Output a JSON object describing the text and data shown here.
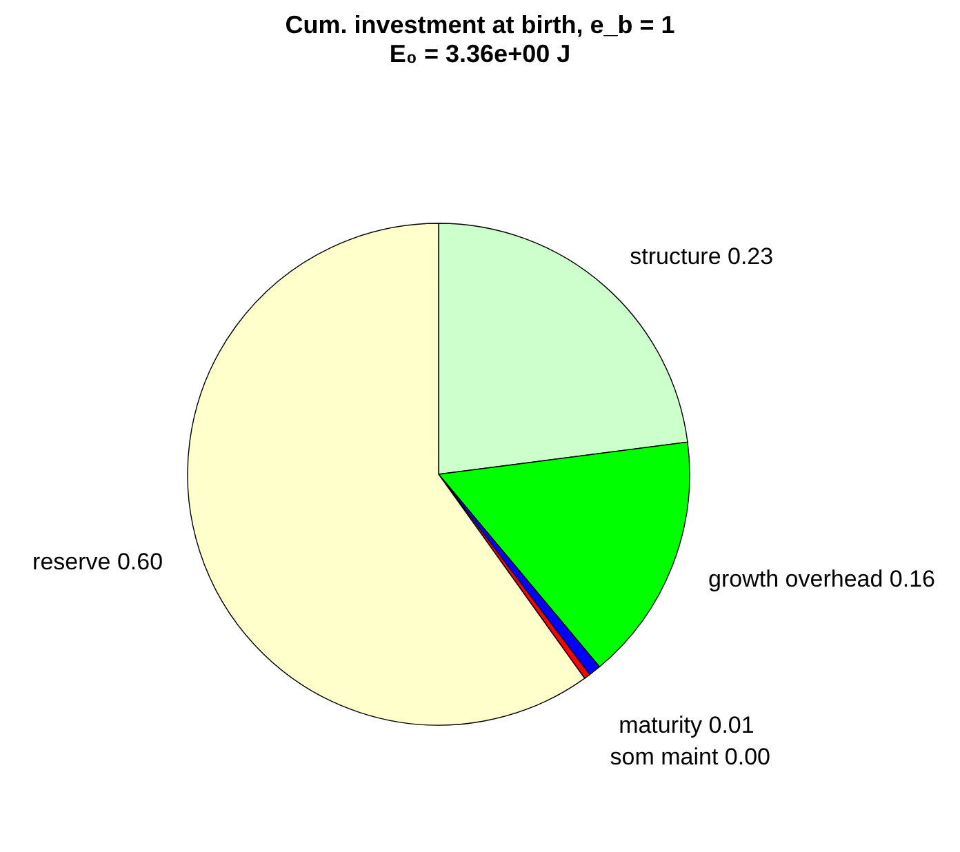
{
  "chart_data": {
    "type": "pie",
    "title": "Cum. investment at birth, e_b = 1",
    "subtitle": "E₀ = 3.36e+00 J",
    "categories": [
      "structure",
      "growth overhead",
      "maturity",
      "som maint",
      "reserve"
    ],
    "values": [
      0.23,
      0.16,
      0.008,
      0.004,
      0.6
    ],
    "value_labels": [
      "0.23",
      "0.16",
      "0.01",
      "0.00",
      "0.60"
    ],
    "colors": [
      "#ccffcc",
      "#00ff00",
      "#0000ff",
      "#ff0000",
      "#ffffcc"
    ]
  }
}
